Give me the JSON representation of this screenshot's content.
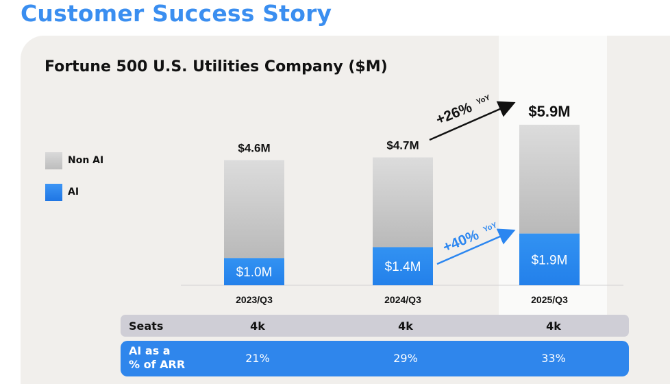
{
  "page_title": "Customer Success Story",
  "chart_data": {
    "type": "bar",
    "title": "Fortune 500 U.S. Utilities Company ($M)",
    "categories": [
      "2023/Q3",
      "2024/Q3",
      "2025/Q3"
    ],
    "series": [
      {
        "name": "Non AI",
        "color": "#c9c9c9",
        "values": [
          3.6,
          3.3,
          4.0
        ]
      },
      {
        "name": "AI",
        "color": "#2b86f0",
        "values": [
          1.0,
          1.4,
          1.9
        ]
      }
    ],
    "totals": [
      4.6,
      4.7,
      5.9
    ],
    "total_labels": [
      "$4.6M",
      "$4.7M",
      "$5.9M"
    ],
    "ai_labels": [
      "$1.0M",
      "$1.4M",
      "$1.9M"
    ],
    "highlighted_category": "2025/Q3",
    "annotations": {
      "total_growth": {
        "value": "+26%",
        "suffix": "YoY"
      },
      "ai_growth": {
        "value": "+40%",
        "suffix": "YoY"
      }
    },
    "ylim": [
      0,
      6.2
    ],
    "legend_position": "left",
    "grid": false
  },
  "legend": [
    {
      "label": "Non AI",
      "color": "#c9c9c9"
    },
    {
      "label": "AI",
      "color": "#2b86f0"
    }
  ],
  "table": {
    "seats": {
      "label": "Seats",
      "values": [
        "4k",
        "4k",
        "4k"
      ]
    },
    "ai_pct": {
      "label_line1": "AI as a",
      "label_line2": "% of ARR",
      "values": [
        "21%",
        "29%",
        "33%"
      ]
    }
  }
}
